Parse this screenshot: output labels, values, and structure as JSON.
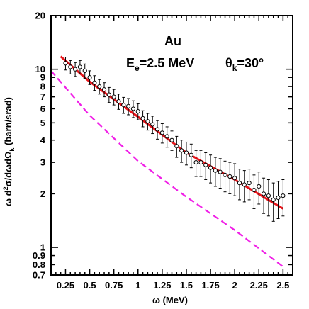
{
  "chart_data": {
    "type": "scatter",
    "xlabel": "ω  (MeV)",
    "ylabel": "ω d²σ/dωdΩk (barn/srad)",
    "ylabel_parts": {
      "pre": "ω d",
      "sup": "2",
      "mid": "σ/dωdΩ",
      "sub": "k",
      "post": " (barn/srad)"
    },
    "xscale": "linear",
    "yscale": "log",
    "xlim": [
      0.1,
      2.6
    ],
    "ylim": [
      0.7,
      20
    ],
    "xticks": [
      "0.25",
      "0.5",
      "0.75",
      "1",
      "1.25",
      "1.5",
      "1.75",
      "2",
      "2.25",
      "2.5"
    ],
    "yticks": [
      "0.7",
      "0.8",
      "0.9",
      "1",
      "2",
      "3",
      "4",
      "5",
      "6",
      "7",
      "8",
      "9",
      "10",
      "20"
    ],
    "annotations": {
      "target": "Au",
      "energy": {
        "pre": "E",
        "sub": "e",
        "post": "=2.5 MeV"
      },
      "angle": {
        "pre": "θ",
        "sub": "k",
        "post": "=30°"
      }
    },
    "series": [
      {
        "role": "data",
        "marker": "open-circle",
        "error_bars": true,
        "color": "#000000",
        "x": [
          0.25,
          0.3,
          0.35,
          0.4,
          0.45,
          0.5,
          0.55,
          0.6,
          0.65,
          0.7,
          0.75,
          0.8,
          0.85,
          0.9,
          0.95,
          1.0,
          1.05,
          1.1,
          1.15,
          1.2,
          1.25,
          1.3,
          1.35,
          1.4,
          1.45,
          1.5,
          1.55,
          1.6,
          1.65,
          1.7,
          1.75,
          1.8,
          1.85,
          1.9,
          1.95,
          2.0,
          2.05,
          2.1,
          2.15,
          2.2,
          2.25,
          2.3,
          2.35,
          2.4,
          2.45,
          2.5
        ],
        "y": [
          10.8,
          10.3,
          10.0,
          10.3,
          9.8,
          9.0,
          8.4,
          8.0,
          7.7,
          7.2,
          7.0,
          6.6,
          6.3,
          6.2,
          6.0,
          5.8,
          5.3,
          5.1,
          4.9,
          4.6,
          4.4,
          4.2,
          4.0,
          3.7,
          3.5,
          3.4,
          3.3,
          3.0,
          3.0,
          2.9,
          2.8,
          2.7,
          2.65,
          2.55,
          2.5,
          2.45,
          2.3,
          2.25,
          2.3,
          2.1,
          2.2,
          2.0,
          1.95,
          1.85,
          1.9,
          1.95
        ],
        "yerr": [
          0.9,
          0.9,
          0.9,
          0.9,
          0.9,
          0.8,
          0.8,
          0.75,
          0.7,
          0.7,
          0.7,
          0.65,
          0.65,
          0.65,
          0.65,
          0.6,
          0.55,
          0.55,
          0.55,
          0.55,
          0.55,
          0.55,
          0.5,
          0.5,
          0.5,
          0.5,
          0.5,
          0.5,
          0.5,
          0.5,
          0.5,
          0.5,
          0.5,
          0.5,
          0.5,
          0.5,
          0.45,
          0.45,
          0.45,
          0.45,
          0.45,
          0.45,
          0.45,
          0.45,
          0.45,
          0.45
        ]
      },
      {
        "role": "theory-solid",
        "line_style": "solid",
        "color": "#e8151b",
        "x": [
          0.2,
          0.5,
          1.0,
          1.5,
          2.0,
          2.5
        ],
        "y": [
          11.8,
          8.5,
          5.4,
          3.4,
          2.4,
          1.65
        ]
      },
      {
        "role": "theory-dashed",
        "line_style": "dashed",
        "color": "#f01fe6",
        "x": [
          0.1,
          0.5,
          1.0,
          1.5,
          2.0,
          2.5
        ],
        "y": [
          9.8,
          5.5,
          3.05,
          1.92,
          1.25,
          0.78
        ]
      }
    ]
  }
}
